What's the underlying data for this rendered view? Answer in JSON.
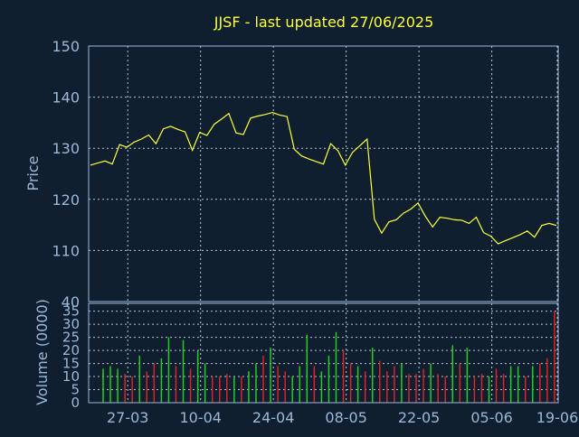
{
  "colors": {
    "background": "#0f1f30",
    "axis": "#9bb8d8",
    "grid": "#b8c7d6",
    "title": "#ffff33",
    "price_line": "#ffff33",
    "volume_up": "#22cc22",
    "volume_down": "#dd2222"
  },
  "chart_data": [
    {
      "type": "line",
      "title": "JJSF - last updated 27/06/2025",
      "ylabel": "Price",
      "ylim": [
        100,
        150
      ],
      "yticks": [
        150,
        140,
        130,
        120,
        110
      ],
      "grid": true,
      "trading_days": 65,
      "x_tick_labels": [
        {
          "day_index": 5,
          "label": "27-03"
        },
        {
          "day_index": 15,
          "label": "10-04"
        },
        {
          "day_index": 25,
          "label": "24-04"
        },
        {
          "day_index": 35,
          "label": "08-05"
        },
        {
          "day_index": 45,
          "label": "22-05"
        },
        {
          "day_index": 55,
          "label": "05-06"
        },
        {
          "day_index": 64,
          "label": "19-06"
        }
      ],
      "series": [
        {
          "values": [
            126.7,
            127.1,
            127.5,
            126.9,
            130.7,
            130.2,
            131.2,
            131.8,
            132.6,
            130.9,
            133.8,
            134.3,
            133.7,
            133.2,
            129.6,
            133.1,
            132.5,
            134.7,
            135.7,
            136.8,
            133.0,
            132.7,
            135.9,
            136.3,
            136.6,
            137.0,
            136.5,
            136.2,
            129.8,
            128.5,
            127.9,
            127.4,
            126.9,
            130.9,
            129.5,
            126.7,
            129.2,
            130.5,
            131.8,
            116.1,
            113.4,
            115.6,
            116.0,
            117.3,
            118.1,
            119.3,
            116.7,
            114.6,
            116.5,
            116.3,
            116.0,
            115.9,
            115.3,
            116.5,
            113.5,
            112.8,
            111.3,
            111.9,
            112.5,
            113.1,
            113.8,
            112.6,
            114.9,
            115.3,
            114.9
          ]
        }
      ],
      "y_bottom_label": "40"
    },
    {
      "type": "bar",
      "ylabel": "Volume (0000)",
      "ylim": [
        0,
        38
      ],
      "yticks": [
        35,
        30,
        25,
        20,
        15,
        10,
        5,
        0
      ],
      "grid": true,
      "series": [
        {
          "values": [
            13,
            14,
            13,
            11,
            10,
            18,
            12,
            15,
            17,
            25,
            14,
            24,
            13,
            20,
            15,
            10,
            10,
            11,
            10,
            10,
            12,
            15,
            18,
            21,
            14,
            12,
            10,
            14,
            26,
            14,
            12,
            18,
            27,
            20,
            15,
            14,
            12,
            21,
            16,
            12,
            14,
            15,
            11,
            11,
            13,
            15,
            11,
            10,
            22,
            15,
            21,
            10,
            11,
            10,
            13,
            11,
            14,
            14,
            10,
            14,
            15,
            17,
            35,
            15,
            25
          ],
          "direction": [
            "up",
            "up",
            "up",
            "down",
            "down",
            "up",
            "down",
            "down",
            "up",
            "up",
            "down",
            "up",
            "down",
            "up",
            "up",
            "down",
            "down",
            "down",
            "up",
            "down",
            "up",
            "up",
            "down",
            "up",
            "down",
            "down",
            "up",
            "up",
            "up",
            "down",
            "up",
            "up",
            "up",
            "down",
            "down",
            "up",
            "down",
            "up",
            "down",
            "down",
            "down",
            "up",
            "down",
            "down",
            "down",
            "up",
            "down",
            "down",
            "up",
            "down",
            "up",
            "down",
            "down",
            "up",
            "down",
            "down",
            "up",
            "up",
            "down",
            "up",
            "down",
            "down",
            "down",
            "down",
            "down"
          ]
        }
      ]
    }
  ]
}
